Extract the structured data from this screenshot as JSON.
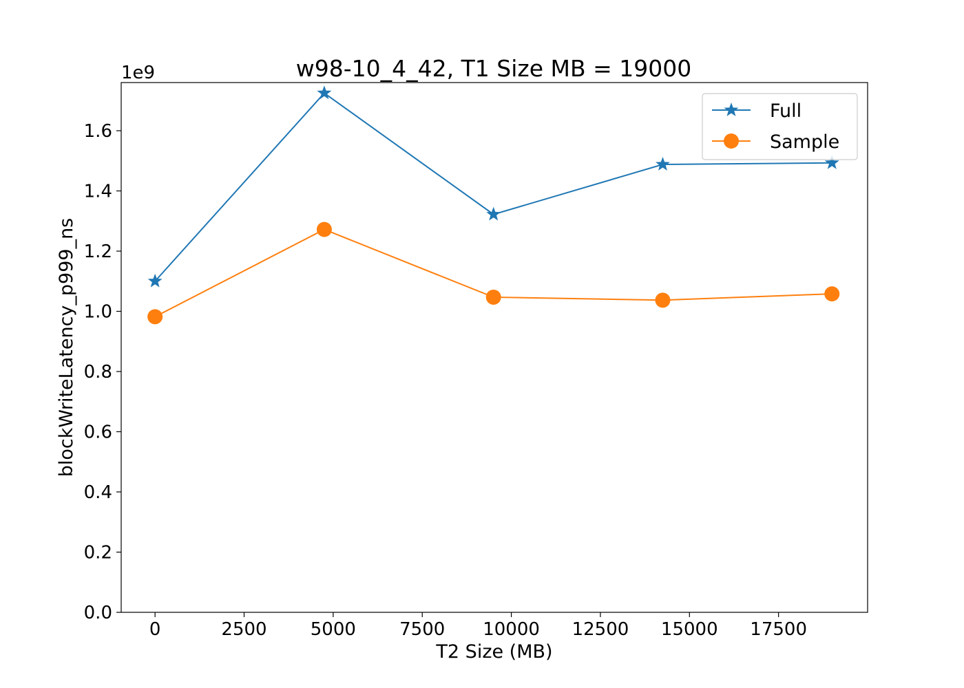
{
  "chart_data": {
    "type": "line",
    "title": "w98-10_4_42, T1 Size MB = 19000",
    "xlabel": "T2 Size (MB)",
    "ylabel": "blockWriteLatency_p999_ns",
    "y_offset_label": "1e9",
    "y_scale": 1000000000,
    "xlim": [
      -950,
      20000
    ],
    "ylim": [
      0,
      1.76
    ],
    "x_ticks": [
      0,
      2500,
      5000,
      7500,
      10000,
      12500,
      15000,
      17500
    ],
    "x_tick_labels": [
      "0",
      "2500",
      "5000",
      "7500",
      "10000",
      "12500",
      "15000",
      "17500"
    ],
    "y_ticks": [
      0.0,
      0.2,
      0.4,
      0.6,
      0.8,
      1.0,
      1.2,
      1.4,
      1.6
    ],
    "y_tick_labels": [
      "0.0",
      "0.2",
      "0.4",
      "0.6",
      "0.8",
      "1.0",
      "1.2",
      "1.4",
      "1.6"
    ],
    "grid": false,
    "legend_position": "top-right",
    "x": [
      0,
      4750,
      9500,
      14250,
      19000
    ],
    "series": [
      {
        "name": "Full",
        "marker": "star",
        "color": "#1f77b4",
        "values": [
          1.1,
          1.725,
          1.322,
          1.488,
          1.493
        ]
      },
      {
        "name": "Sample",
        "marker": "circle",
        "color": "#ff7f0e",
        "values": [
          0.982,
          1.272,
          1.047,
          1.037,
          1.058
        ]
      }
    ]
  }
}
